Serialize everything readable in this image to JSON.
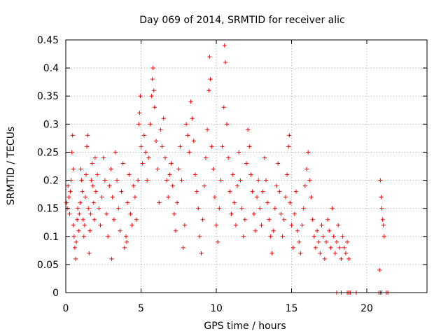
{
  "chart_data": {
    "type": "scatter",
    "title": "Day 069 of 2014, SRMTID for receiver alic",
    "xlabel": "GPS time / hours",
    "ylabel": "SRMTID / TECUs",
    "xlim": [
      0,
      24
    ],
    "ylim": [
      0,
      0.45
    ],
    "xticks": [
      0,
      5,
      10,
      15,
      20
    ],
    "xtick_labels": [
      "0",
      "5",
      "10",
      "15",
      "20"
    ],
    "yticks": [
      0,
      0.05,
      0.1,
      0.15,
      0.2,
      0.25,
      0.3,
      0.35,
      0.4,
      0.45
    ],
    "ytick_labels": [
      "0",
      "0.05",
      "0.1",
      "0.15",
      "0.2",
      "0.25",
      "0.3",
      "0.35",
      "0.4",
      "0.45"
    ],
    "grid": true,
    "marker": "plus",
    "color": "#ff0000",
    "series": [
      {
        "points": [
          [
            0.05,
            0.16
          ],
          [
            0.1,
            0.15
          ],
          [
            0.15,
            0.19
          ],
          [
            0.2,
            0.17
          ],
          [
            0.25,
            0.14
          ],
          [
            0.3,
            0.18
          ],
          [
            0.35,
            0.2
          ],
          [
            0.4,
            0.25
          ],
          [
            0.45,
            0.28
          ],
          [
            0.5,
            0.22
          ],
          [
            0.5,
            0.12
          ],
          [
            0.55,
            0.1
          ],
          [
            0.6,
            0.08
          ],
          [
            0.65,
            0.06
          ],
          [
            0.7,
            0.09
          ],
          [
            0.75,
            0.13
          ],
          [
            0.8,
            0.15
          ],
          [
            0.85,
            0.11
          ],
          [
            0.9,
            0.14
          ],
          [
            0.95,
            0.16
          ],
          [
            1.0,
            0.22
          ],
          [
            1.05,
            0.2
          ],
          [
            1.1,
            0.18
          ],
          [
            1.15,
            0.13
          ],
          [
            1.2,
            0.1
          ],
          [
            1.25,
            0.12
          ],
          [
            1.3,
            0.17
          ],
          [
            1.35,
            0.21
          ],
          [
            1.4,
            0.26
          ],
          [
            1.45,
            0.28
          ],
          [
            1.5,
            0.15
          ],
          [
            1.55,
            0.07
          ],
          [
            1.6,
            0.11
          ],
          [
            1.65,
            0.14
          ],
          [
            1.7,
            0.2
          ],
          [
            1.75,
            0.23
          ],
          [
            1.8,
            0.19
          ],
          [
            1.85,
            0.16
          ],
          [
            1.9,
            0.13
          ],
          [
            1.95,
            0.24
          ],
          [
            2.0,
            0.18
          ],
          [
            2.1,
            0.21
          ],
          [
            2.2,
            0.15
          ],
          [
            2.3,
            0.12
          ],
          [
            2.4,
            0.17
          ],
          [
            2.5,
            0.24
          ],
          [
            2.6,
            0.2
          ],
          [
            2.7,
            0.14
          ],
          [
            2.8,
            0.1
          ],
          [
            2.9,
            0.19
          ],
          [
            3.0,
            0.22
          ],
          [
            3.05,
            0.06
          ],
          [
            3.1,
            0.17
          ],
          [
            3.2,
            0.13
          ],
          [
            3.3,
            0.25
          ],
          [
            3.4,
            0.2
          ],
          [
            3.5,
            0.15
          ],
          [
            3.6,
            0.11
          ],
          [
            3.7,
            0.18
          ],
          [
            3.8,
            0.23
          ],
          [
            3.9,
            0.08
          ],
          [
            4.0,
            0.1
          ],
          [
            4.05,
            0.09
          ],
          [
            4.1,
            0.16
          ],
          [
            4.2,
            0.21
          ],
          [
            4.3,
            0.14
          ],
          [
            4.4,
            0.12
          ],
          [
            4.5,
            0.19
          ],
          [
            4.6,
            0.17
          ],
          [
            4.7,
            0.13
          ],
          [
            4.8,
            0.2
          ],
          [
            4.85,
            0.3
          ],
          [
            4.9,
            0.32
          ],
          [
            4.95,
            0.35
          ],
          [
            5.0,
            0.26
          ],
          [
            5.1,
            0.23
          ],
          [
            5.2,
            0.28
          ],
          [
            5.3,
            0.25
          ],
          [
            5.4,
            0.2
          ],
          [
            5.5,
            0.24
          ],
          [
            5.6,
            0.3
          ],
          [
            5.7,
            0.35
          ],
          [
            5.75,
            0.38
          ],
          [
            5.8,
            0.4
          ],
          [
            5.85,
            0.36
          ],
          [
            5.9,
            0.33
          ],
          [
            6.0,
            0.27
          ],
          [
            6.1,
            0.22
          ],
          [
            6.2,
            0.16
          ],
          [
            6.3,
            0.29
          ],
          [
            6.4,
            0.26
          ],
          [
            6.5,
            0.31
          ],
          [
            6.6,
            0.24
          ],
          [
            6.7,
            0.2
          ],
          [
            6.8,
            0.17
          ],
          [
            6.9,
            0.21
          ],
          [
            7.0,
            0.23
          ],
          [
            7.1,
            0.19
          ],
          [
            7.2,
            0.14
          ],
          [
            7.3,
            0.11
          ],
          [
            7.4,
            0.16
          ],
          [
            7.5,
            0.22
          ],
          [
            7.6,
            0.26
          ],
          [
            7.7,
            0.2
          ],
          [
            7.8,
            0.08
          ],
          [
            7.9,
            0.12
          ],
          [
            8.0,
            0.3
          ],
          [
            8.1,
            0.28
          ],
          [
            8.2,
            0.25
          ],
          [
            8.3,
            0.34
          ],
          [
            8.4,
            0.31
          ],
          [
            8.5,
            0.27
          ],
          [
            8.6,
            0.21
          ],
          [
            8.7,
            0.18
          ],
          [
            8.8,
            0.15
          ],
          [
            8.9,
            0.1
          ],
          [
            9.0,
            0.07
          ],
          [
            9.1,
            0.13
          ],
          [
            9.2,
            0.19
          ],
          [
            9.3,
            0.24
          ],
          [
            9.4,
            0.29
          ],
          [
            9.5,
            0.36
          ],
          [
            9.55,
            0.42
          ],
          [
            9.6,
            0.38
          ],
          [
            9.7,
            0.26
          ],
          [
            9.8,
            0.22
          ],
          [
            9.9,
            0.17
          ],
          [
            10.0,
            0.12
          ],
          [
            10.1,
            0.09
          ],
          [
            10.2,
            0.15
          ],
          [
            10.3,
            0.2
          ],
          [
            10.4,
            0.26
          ],
          [
            10.5,
            0.33
          ],
          [
            10.55,
            0.44
          ],
          [
            10.6,
            0.41
          ],
          [
            10.7,
            0.3
          ],
          [
            10.8,
            0.24
          ],
          [
            10.9,
            0.18
          ],
          [
            11.0,
            0.14
          ],
          [
            11.1,
            0.21
          ],
          [
            11.2,
            0.16
          ],
          [
            11.3,
            0.12
          ],
          [
            11.4,
            0.19
          ],
          [
            11.5,
            0.25
          ],
          [
            11.6,
            0.2
          ],
          [
            11.7,
            0.15
          ],
          [
            11.8,
            0.1
          ],
          [
            11.9,
            0.13
          ],
          [
            12.0,
            0.23
          ],
          [
            12.1,
            0.29
          ],
          [
            12.2,
            0.26
          ],
          [
            12.3,
            0.21
          ],
          [
            12.4,
            0.18
          ],
          [
            12.5,
            0.14
          ],
          [
            12.6,
            0.11
          ],
          [
            12.7,
            0.17
          ],
          [
            12.8,
            0.2
          ],
          [
            12.9,
            0.15
          ],
          [
            13.0,
            0.12
          ],
          [
            13.1,
            0.18
          ],
          [
            13.2,
            0.24
          ],
          [
            13.3,
            0.2
          ],
          [
            13.4,
            0.16
          ],
          [
            13.5,
            0.13
          ],
          [
            13.6,
            0.1
          ],
          [
            13.7,
            0.07
          ],
          [
            13.8,
            0.11
          ],
          [
            13.9,
            0.15
          ],
          [
            14.0,
            0.19
          ],
          [
            14.1,
            0.23
          ],
          [
            14.2,
            0.18
          ],
          [
            14.3,
            0.14
          ],
          [
            14.4,
            0.1
          ],
          [
            14.5,
            0.13
          ],
          [
            14.6,
            0.17
          ],
          [
            14.7,
            0.21
          ],
          [
            14.8,
            0.26
          ],
          [
            14.85,
            0.28
          ],
          [
            14.9,
            0.16
          ],
          [
            15.0,
            0.12
          ],
          [
            15.1,
            0.08
          ],
          [
            15.2,
            0.14
          ],
          [
            15.3,
            0.18
          ],
          [
            15.4,
            0.11
          ],
          [
            15.5,
            0.09
          ],
          [
            15.6,
            0.07
          ],
          [
            15.7,
            0.12
          ],
          [
            15.8,
            0.15
          ],
          [
            15.9,
            0.19
          ],
          [
            16.0,
            0.22
          ],
          [
            16.1,
            0.25
          ],
          [
            16.2,
            0.2
          ],
          [
            16.3,
            0.17
          ],
          [
            16.4,
            0.13
          ],
          [
            16.5,
            0.1
          ],
          [
            16.6,
            0.08
          ],
          [
            16.7,
            0.11
          ],
          [
            16.8,
            0.09
          ],
          [
            16.9,
            0.07
          ],
          [
            17.0,
            0.12
          ],
          [
            17.1,
            0.1
          ],
          [
            17.2,
            0.06
          ],
          [
            17.3,
            0.09
          ],
          [
            17.4,
            0.13
          ],
          [
            17.5,
            0.11
          ],
          [
            17.6,
            0.08
          ],
          [
            17.7,
            0.15
          ],
          [
            17.8,
            0.1
          ],
          [
            17.9,
            0.07
          ],
          [
            18.0,
            0.09
          ],
          [
            18.1,
            0.12
          ],
          [
            18.2,
            0.08
          ],
          [
            18.3,
            0.06
          ],
          [
            18.4,
            0.1
          ],
          [
            18.5,
            0.08
          ],
          [
            18.6,
            0.07
          ],
          [
            18.7,
            0.09
          ],
          [
            18.8,
            0.06
          ],
          [
            20.9,
            0.2
          ],
          [
            20.95,
            0.17
          ],
          [
            21.0,
            0.15
          ],
          [
            21.05,
            0.13
          ],
          [
            21.1,
            0.12
          ],
          [
            21.15,
            0.1
          ],
          [
            20.85,
            0.04
          ],
          [
            18.0,
            0.0
          ],
          [
            18.3,
            0.0
          ],
          [
            18.7,
            0.0
          ],
          [
            18.8,
            0.0
          ],
          [
            18.9,
            0.0
          ],
          [
            19.3,
            0.0
          ],
          [
            20.8,
            0.0
          ],
          [
            20.9,
            0.0
          ],
          [
            21.0,
            0.0
          ],
          [
            21.3,
            0.0
          ],
          [
            21.4,
            0.0
          ]
        ]
      }
    ]
  }
}
